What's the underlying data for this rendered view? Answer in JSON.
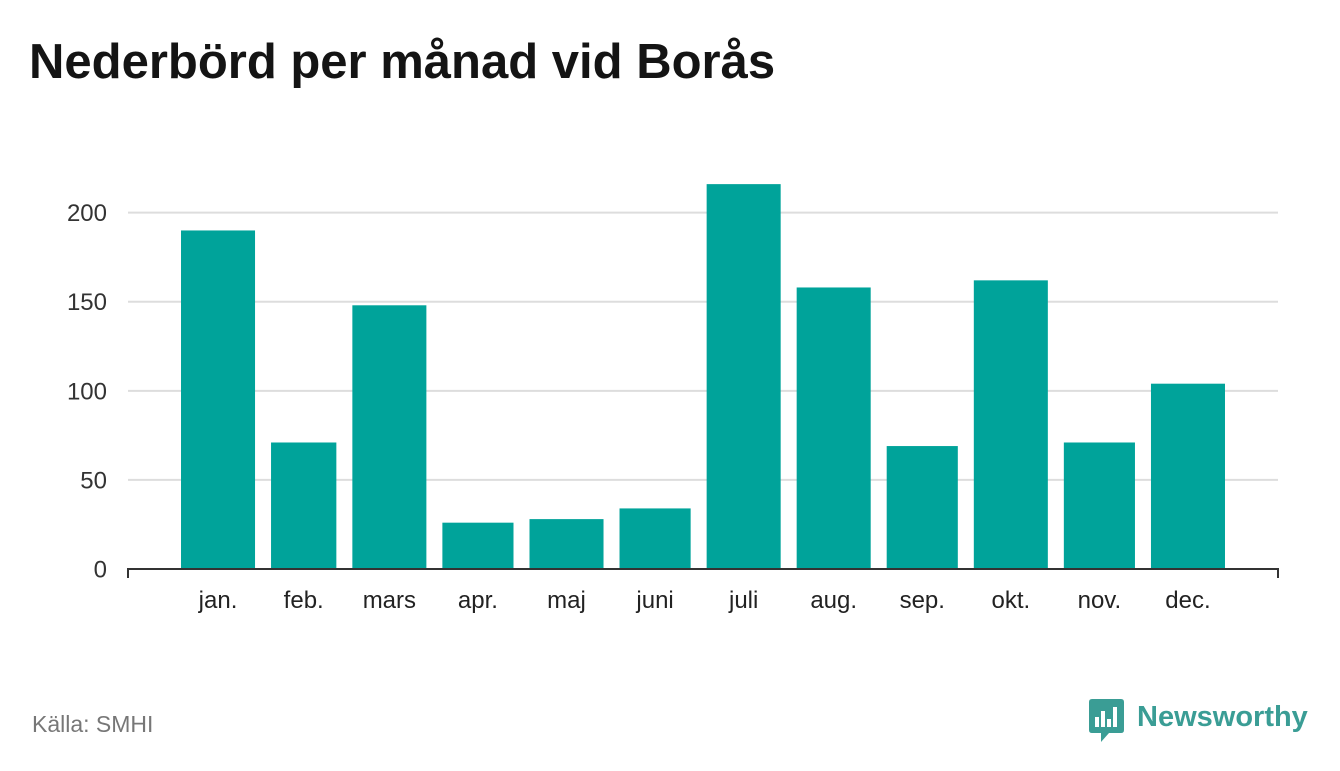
{
  "colors": {
    "bar": "#00a39a",
    "grid": "#dddddd",
    "axis": "#333333"
  },
  "brand": {
    "name": "Newsworthy",
    "icon": "newsworthy-logo-icon",
    "color": "#3a9d95"
  },
  "source": "Källa: SMHI",
  "chart_data": {
    "type": "bar",
    "title": "Nederbörd per månad vid Borås",
    "categories": [
      "jan.",
      "feb.",
      "mars",
      "apr.",
      "maj",
      "juni",
      "juli",
      "aug.",
      "sep.",
      "okt.",
      "nov.",
      "dec."
    ],
    "values": [
      190,
      71,
      148,
      26,
      28,
      34,
      216,
      158,
      69,
      162,
      71,
      104
    ],
    "yticks": [
      0,
      50,
      100,
      150,
      200
    ],
    "ylim": [
      0,
      220
    ],
    "grid": true
  }
}
